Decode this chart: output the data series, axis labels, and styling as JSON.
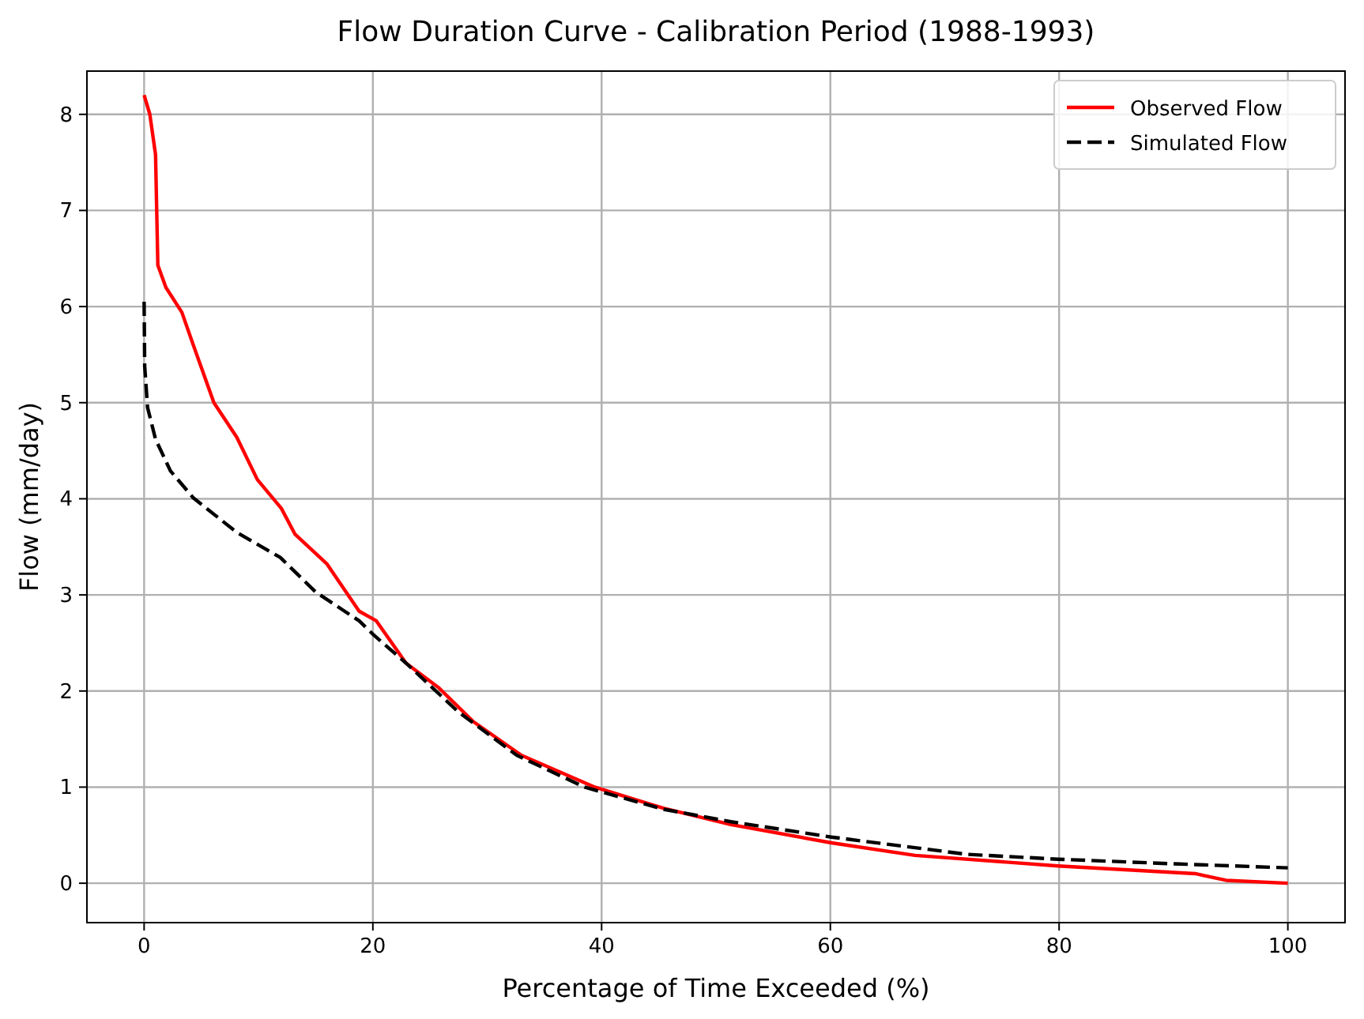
{
  "chart_data": {
    "type": "line",
    "title": "Flow Duration Curve - Calibration Period (1988-1993)",
    "xlabel": "Percentage of Time Exceeded (%)",
    "ylabel": "Flow (mm/day)",
    "xlim": [
      -5,
      105
    ],
    "ylim": [
      -0.41,
      8.45
    ],
    "xticks": [
      0,
      20,
      40,
      60,
      80,
      100
    ],
    "yticks": [
      0,
      1,
      2,
      3,
      4,
      5,
      6,
      7,
      8
    ],
    "grid": true,
    "legend": "top right",
    "series": [
      {
        "name": "Observed Flow",
        "color": "#ff0000",
        "line_style": "solid",
        "x": [
          0,
          0.5,
          1.0,
          1.2,
          1.9,
          3.3,
          4.3,
          6.1,
          8.1,
          9.9,
          12,
          13.2,
          16,
          18.8,
          20.3,
          22.9,
          25.7,
          28.8,
          33,
          39.4,
          45.4,
          51.3,
          60.1,
          67.4,
          79.9,
          91.9,
          94.6,
          100
        ],
        "values": [
          8.2,
          8.0,
          7.58,
          6.43,
          6.2,
          5.94,
          5.6,
          5.0,
          4.64,
          4.2,
          3.9,
          3.63,
          3.32,
          2.83,
          2.73,
          2.29,
          2.04,
          1.68,
          1.33,
          1.0,
          0.78,
          0.61,
          0.42,
          0.29,
          0.18,
          0.1,
          0.03,
          0
        ]
      },
      {
        "name": "Simulated Flow",
        "color": "#000000",
        "line_style": "dashed",
        "x": [
          0,
          0.05,
          0.3,
          1,
          2.3,
          4.3,
          8.1,
          11.9,
          15,
          18.8,
          20.1,
          22.9,
          27.4,
          32.6,
          38.5,
          45.4,
          51.3,
          60.1,
          72,
          79.9,
          90.5,
          100
        ],
        "values": [
          6.05,
          5.38,
          4.95,
          4.62,
          4.29,
          4.01,
          3.65,
          3.39,
          3.03,
          2.73,
          2.58,
          2.29,
          1.79,
          1.33,
          1.0,
          0.77,
          0.64,
          0.48,
          0.3,
          0.25,
          0.2,
          0.16
        ]
      }
    ]
  }
}
